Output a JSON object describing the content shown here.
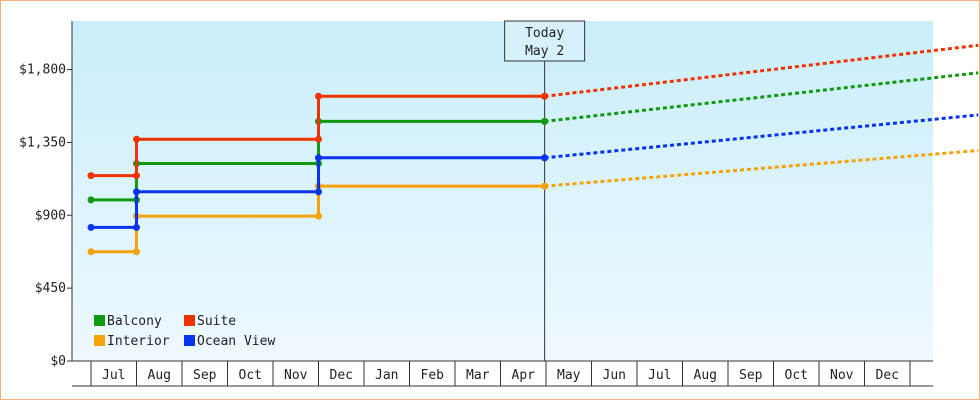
{
  "chart_data": {
    "type": "line",
    "step": true,
    "title": "",
    "xlabel": "",
    "ylabel": "",
    "ylim": [
      0,
      2100
    ],
    "y_ticks": [
      0,
      450,
      900,
      1350,
      1800
    ],
    "y_tick_labels": [
      "$0",
      "$450",
      "$900",
      "$1,350",
      "$1,800"
    ],
    "x_labels": [
      "Jul",
      "Aug",
      "Sep",
      "Oct",
      "Nov",
      "Dec",
      "Jan",
      "Feb",
      "Mar",
      "Apr",
      "May",
      "Jun",
      "Jul",
      "Aug",
      "Sep",
      "Oct",
      "Nov",
      "Dec"
    ],
    "today_marker": {
      "line1": "Today",
      "line2": "May 2",
      "month_index": 9.97
    },
    "grid": false,
    "background": "light-blue gradient",
    "legend_position": "bottom-left",
    "series": [
      {
        "name": "Balcony",
        "color": "#119911",
        "steps": [
          [
            0,
            995
          ],
          [
            1,
            1220
          ],
          [
            5,
            1480
          ],
          [
            9.97,
            1480
          ]
        ],
        "forecast": [
          [
            9.97,
            1480
          ],
          [
            19.5,
            1780
          ]
        ]
      },
      {
        "name": "Suite",
        "color": "#ee3300",
        "steps": [
          [
            0,
            1145
          ],
          [
            1,
            1370
          ],
          [
            5,
            1635
          ],
          [
            9.97,
            1635
          ]
        ],
        "forecast": [
          [
            9.97,
            1635
          ],
          [
            19.5,
            1950
          ]
        ]
      },
      {
        "name": "Interior",
        "color": "#f5a20c",
        "steps": [
          [
            0,
            675
          ],
          [
            1,
            895
          ],
          [
            5,
            1080
          ],
          [
            9.97,
            1080
          ]
        ],
        "forecast": [
          [
            9.97,
            1080
          ],
          [
            19.5,
            1300
          ]
        ]
      },
      {
        "name": "Ocean View",
        "color": "#0a33ee",
        "steps": [
          [
            0,
            825
          ],
          [
            1,
            1045
          ],
          [
            5,
            1255
          ],
          [
            9.97,
            1255
          ]
        ],
        "forecast": [
          [
            9.97,
            1255
          ],
          [
            19.5,
            1520
          ]
        ]
      }
    ]
  }
}
